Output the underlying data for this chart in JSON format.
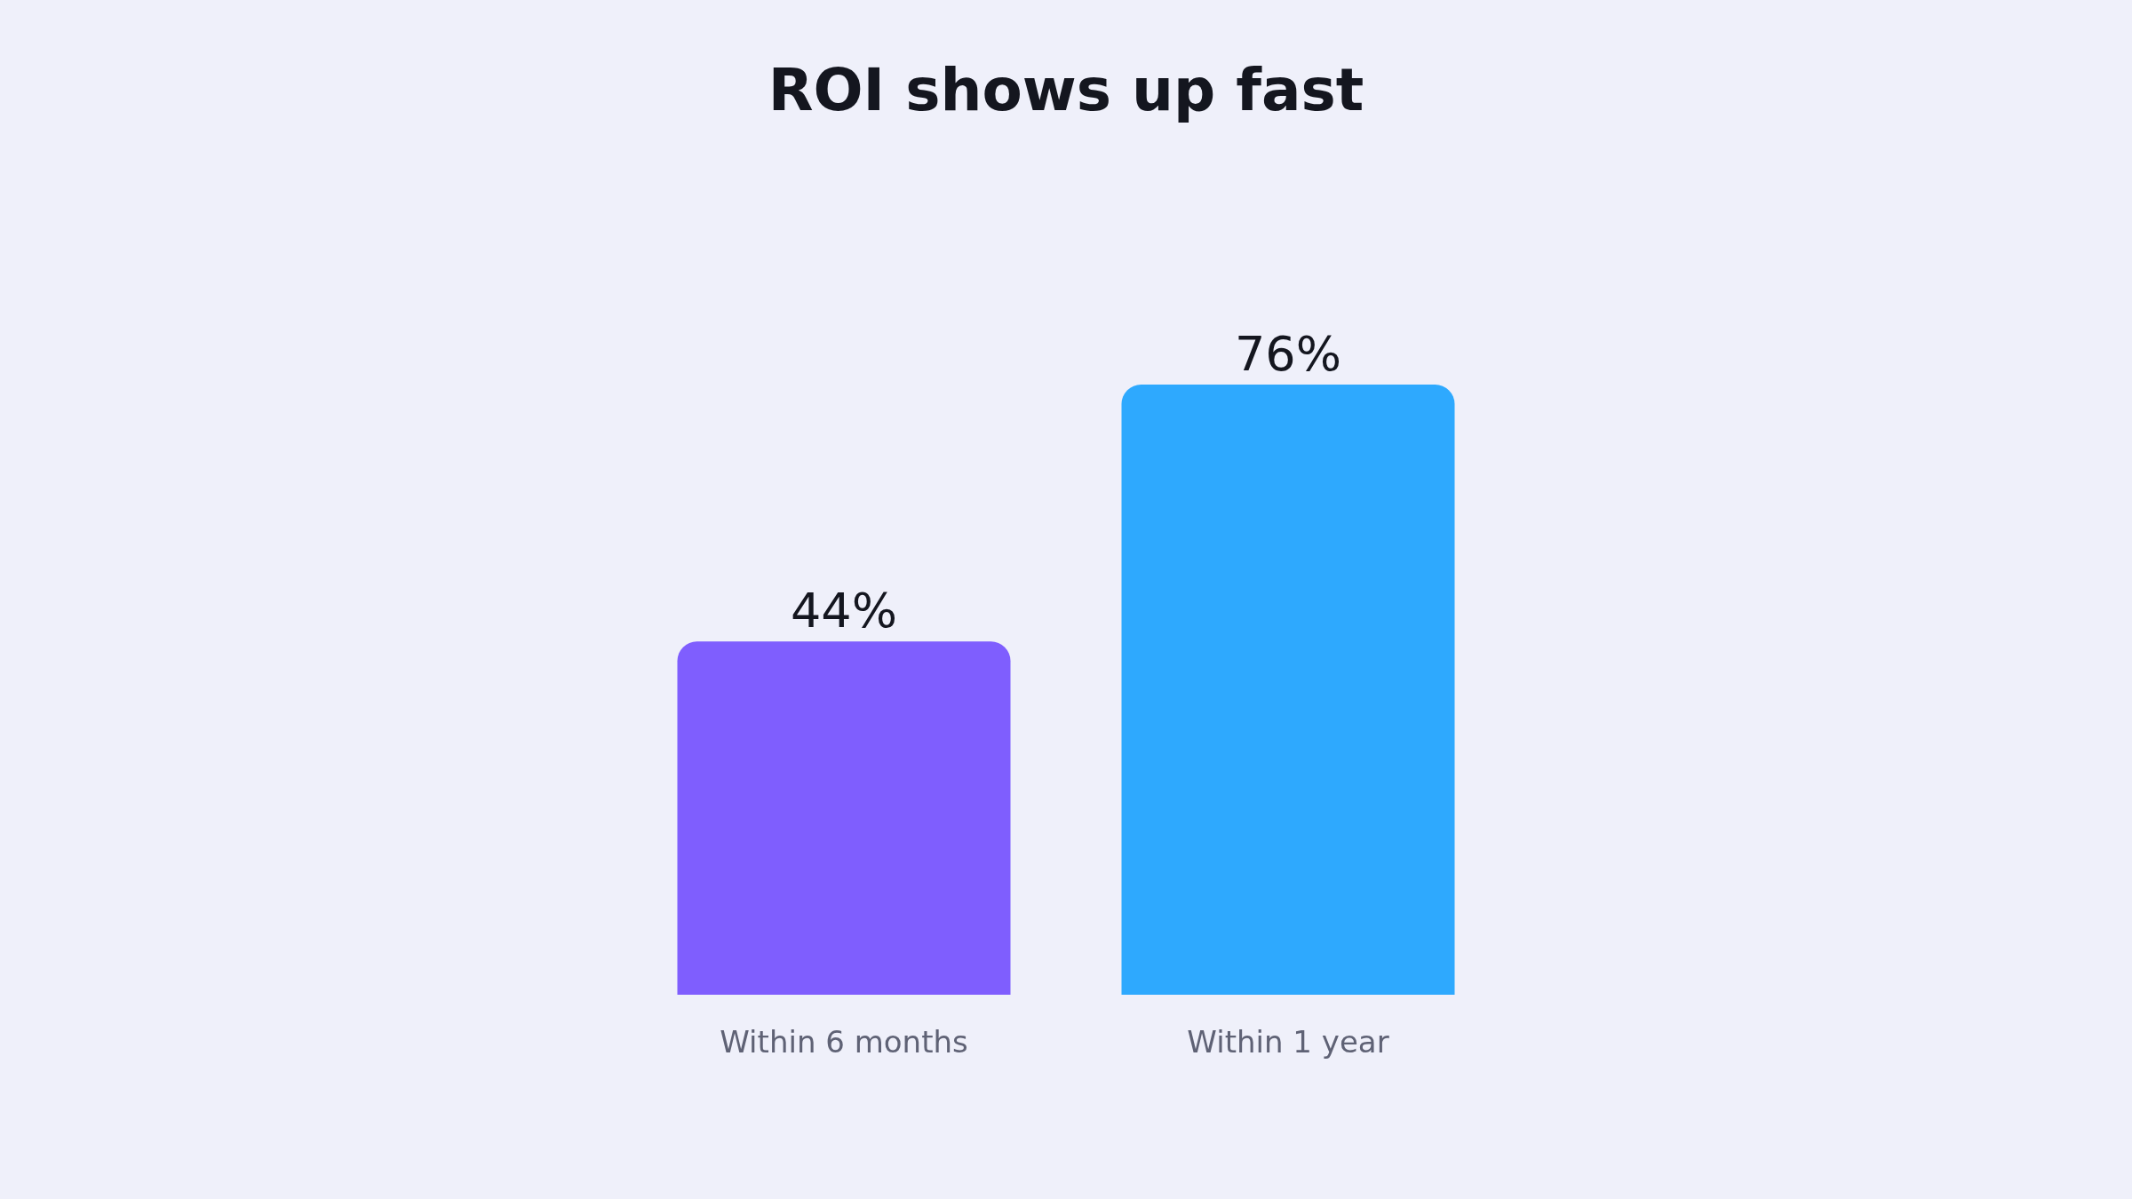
{
  "chart_data": {
    "type": "bar",
    "title": "ROI shows up fast",
    "categories": [
      "Within 6 months",
      "Within 1 year"
    ],
    "values": [
      44,
      76
    ],
    "colors": [
      "#7f5efe",
      "#2ea9fe"
    ],
    "value_labels": [
      "44%",
      "76%"
    ],
    "grid": false,
    "legend": false
  }
}
